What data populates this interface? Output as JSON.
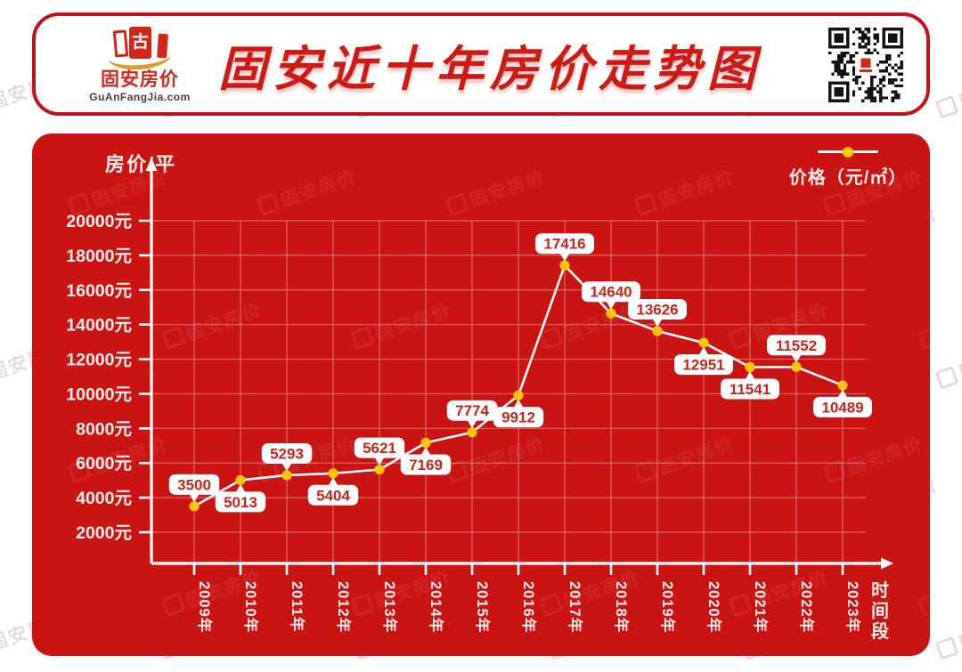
{
  "header": {
    "logo": {
      "text": "固安房价",
      "domain": "GuAnFangJia.com",
      "icon_glyph": "古"
    },
    "title": "固安近十年房价走势图"
  },
  "watermark": {
    "text": "固安房价"
  },
  "chart_data": {
    "type": "line",
    "title": "固安近十年房价走势图",
    "y_axis_title": "房价/平",
    "x_axis_title": "时间段",
    "legend": {
      "label": "价格（元/㎡）",
      "position": "top-right",
      "marker": "line-with-dot"
    },
    "categories": [
      "2009年",
      "2010年",
      "2011年",
      "2012年",
      "2013年",
      "2014年",
      "2015年",
      "2016年",
      "2017年",
      "2018年",
      "2019年",
      "2020年",
      "2021年",
      "2022年",
      "2023年"
    ],
    "series": [
      {
        "name": "价格（元/㎡）",
        "values": [
          3500,
          5013,
          5293,
          5404,
          5621,
          7169,
          7774,
          9912,
          17416,
          14640,
          13626,
          12951,
          11541,
          11552,
          10489
        ]
      }
    ],
    "label_sides": [
      "above",
      "below",
      "above",
      "below",
      "above",
      "below",
      "above",
      "below",
      "above",
      "above",
      "above",
      "below",
      "below",
      "above",
      "below"
    ],
    "y_tick_labels": [
      "20000元",
      "18000元",
      "16000元",
      "14000元",
      "12000元",
      "10000元",
      "8000元",
      "6000元",
      "4000元",
      "2000元"
    ],
    "ylim": [
      2000,
      20000
    ],
    "grid": true,
    "legend_position": "top-right",
    "colors": {
      "panel_bg": "#ca1313",
      "line": "#ffffff",
      "dot": "#ffc40a",
      "grid": "rgba(255,255,255,0.35)",
      "axis": "#ffffff",
      "callout_bg": "#ffffff",
      "callout_text": "#c2261c",
      "tick_text": "#fdeeee",
      "title_red": "#ce1a15"
    }
  }
}
